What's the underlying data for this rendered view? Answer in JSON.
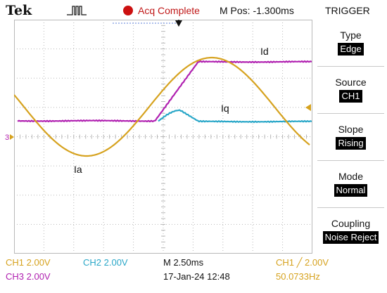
{
  "header": {
    "brand": "Tek",
    "acq_status": "Acq Complete",
    "m_pos": "M Pos: -1.300ms",
    "menu_title": "TRIGGER"
  },
  "menu": [
    {
      "label": "Type",
      "value": "Edge"
    },
    {
      "label": "Source",
      "value": "CH1"
    },
    {
      "label": "Slope",
      "value": "Rising"
    },
    {
      "label": "Mode",
      "value": "Normal"
    },
    {
      "label": "Coupling",
      "value": "Noise Reject"
    }
  ],
  "traces": {
    "id_label": "Id",
    "iq_label": "Iq",
    "ia_label": "Ia",
    "ch3_marker": "3"
  },
  "status": {
    "ch1": "CH1  2.00V",
    "ch2": "CH2  2.00V",
    "ch3": "CH3  2.00V",
    "timebase": "M 2.50ms",
    "date": "17-Jan-24 12:48",
    "trigger": "CH1 ╱ 2.00V",
    "frequency": "50.0733Hz"
  },
  "colors": {
    "ch1": "#d6a21e",
    "ch2": "#2aa7c8",
    "ch3": "#b020b0",
    "acq": "#cc1010",
    "grid": "#b8b8b8"
  }
}
